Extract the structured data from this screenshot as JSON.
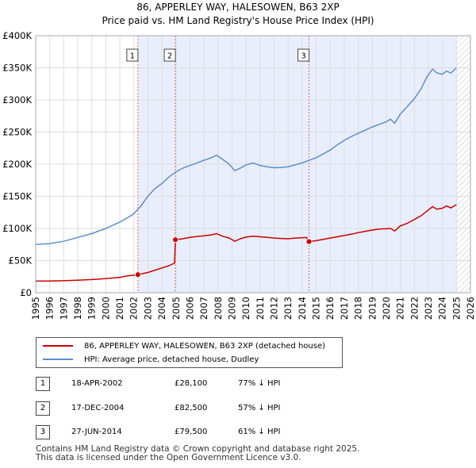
{
  "title_line1": "86, APPERLEY WAY, HALESOWEN, B63 2XP",
  "title_line2": "Price paid vs. HM Land Registry's House Price Index (HPI)",
  "chart_data": {
    "type": "line",
    "title": "86, APPERLEY WAY, HALESOWEN, B63 2XP — Price paid vs. HM Land Registry's House Price Index (HPI)",
    "xlabel": "",
    "ylabel": "",
    "xlim": [
      1995,
      2026
    ],
    "ylim": [
      0,
      400000
    ],
    "x_ticks": [
      "1995",
      "1996",
      "1997",
      "1998",
      "1999",
      "2000",
      "2001",
      "2002",
      "2003",
      "2004",
      "2005",
      "2006",
      "2007",
      "2008",
      "2009",
      "2010",
      "2011",
      "2012",
      "2013",
      "2014",
      "2015",
      "2016",
      "2017",
      "2018",
      "2019",
      "2020",
      "2021",
      "2022",
      "2023",
      "2024",
      "2025",
      "2026"
    ],
    "y_ticks": [
      0,
      50000,
      100000,
      150000,
      200000,
      250000,
      300000,
      350000,
      400000
    ],
    "y_tick_labels": [
      "£0",
      "£50K",
      "£100K",
      "£150K",
      "£200K",
      "£250K",
      "£300K",
      "£350K",
      "£400K"
    ],
    "series": [
      {
        "name": "86, APPERLEY WAY, HALESOWEN, B63 2XP (detached house)",
        "color": "#cc0000",
        "x": [
          1995.0,
          1996.0,
          1997.0,
          1998.0,
          1999.0,
          2000.0,
          2001.0,
          2001.5,
          2002.29,
          2003.0,
          2003.5,
          2004.0,
          2004.5,
          2004.9,
          2004.96,
          2005.5,
          2006.0,
          2006.5,
          2007.0,
          2007.5,
          2007.9,
          2008.3,
          2008.8,
          2009.2,
          2009.6,
          2010.0,
          2010.5,
          2011.0,
          2011.5,
          2012.0,
          2012.5,
          2013.0,
          2013.5,
          2014.0,
          2014.3,
          2014.49,
          2015.0,
          2015.5,
          2016.0,
          2016.5,
          2017.0,
          2017.5,
          2018.0,
          2018.5,
          2019.0,
          2019.5,
          2020.0,
          2020.3,
          2020.6,
          2021.0,
          2021.5,
          2022.0,
          2022.5,
          2022.9,
          2023.3,
          2023.6,
          2024.0,
          2024.3,
          2024.6,
          2025.0
        ],
        "values": [
          18000,
          18200,
          18700,
          19500,
          20500,
          22000,
          24000,
          26000,
          28100,
          31500,
          35000,
          38500,
          42000,
          46000,
          82500,
          84000,
          86000,
          87500,
          88500,
          90000,
          92000,
          88000,
          85000,
          80000,
          84000,
          86500,
          88000,
          87000,
          86000,
          85000,
          84500,
          84000,
          85000,
          85500,
          86000,
          79500,
          81000,
          83000,
          85000,
          87000,
          89000,
          91000,
          93500,
          95500,
          97500,
          99000,
          99500,
          100000,
          96000,
          104000,
          108000,
          114000,
          120000,
          127000,
          134000,
          130000,
          131500,
          135000,
          132000,
          137000
        ]
      },
      {
        "name": "HPI: Average price, detached house, Dudley",
        "color": "#5b8fd0",
        "x": [
          1995.0,
          1996.0,
          1997.0,
          1998.0,
          1999.0,
          2000.0,
          2001.0,
          2001.5,
          2002.0,
          2002.5,
          2003.0,
          2003.5,
          2004.0,
          2004.5,
          2005.0,
          2005.5,
          2006.0,
          2006.5,
          2007.0,
          2007.5,
          2007.9,
          2008.3,
          2008.8,
          2009.2,
          2009.6,
          2010.0,
          2010.5,
          2011.0,
          2011.5,
          2012.0,
          2012.5,
          2013.0,
          2013.5,
          2014.0,
          2014.5,
          2015.0,
          2015.5,
          2016.0,
          2016.5,
          2017.0,
          2017.5,
          2018.0,
          2018.5,
          2019.0,
          2019.5,
          2020.0,
          2020.3,
          2020.6,
          2021.0,
          2021.5,
          2022.0,
          2022.5,
          2022.9,
          2023.3,
          2023.6,
          2024.0,
          2024.3,
          2024.6,
          2025.0
        ],
        "values": [
          75000,
          76500,
          80000,
          86000,
          92000,
          100000,
          110000,
          116000,
          123000,
          135000,
          150000,
          162000,
          170000,
          180000,
          188000,
          194000,
          198000,
          202000,
          206000,
          210000,
          214000,
          208000,
          200000,
          190000,
          194000,
          199000,
          202000,
          198000,
          196000,
          194500,
          195000,
          196000,
          199000,
          202000,
          206000,
          210000,
          216000,
          222000,
          230000,
          237000,
          243000,
          248000,
          253000,
          258000,
          262000,
          266000,
          270000,
          264000,
          278000,
          290000,
          302000,
          318000,
          336000,
          348000,
          342000,
          340000,
          345000,
          342000,
          350000
        ]
      }
    ],
    "transactions": [
      {
        "num": "1",
        "date": "18-APR-2002",
        "price": "£28,100",
        "hpi": "77% ↓ HPI",
        "x": 2002.29,
        "value": 28100
      },
      {
        "num": "2",
        "date": "17-DEC-2004",
        "price": "£82,500",
        "hpi": "57% ↓ HPI",
        "x": 2004.96,
        "value": 82500
      },
      {
        "num": "3",
        "date": "27-JUN-2014",
        "price": "£79,500",
        "hpi": "61% ↓ HPI",
        "x": 2014.49,
        "value": 79500
      }
    ],
    "projection_start": 2025.0,
    "legend_position": "below"
  },
  "legend": {
    "property": "86, APPERLEY WAY, HALESOWEN, B63 2XP (detached house)",
    "hpi": "HPI: Average price, detached house, Dudley"
  },
  "footer_line1": "Contains HM Land Registry data © Crown copyright and database right 2025.",
  "footer_line2": "This data is licensed under the Open Government Licence v3.0."
}
